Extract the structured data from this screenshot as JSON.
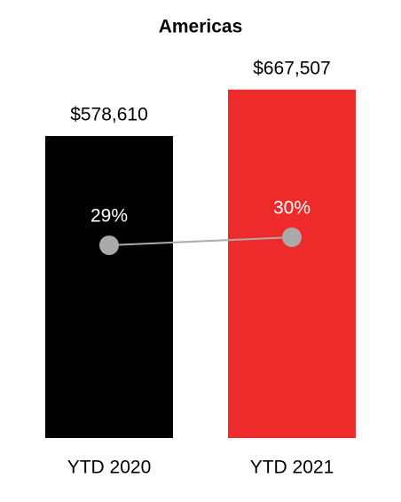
{
  "chart_data": {
    "type": "bar",
    "title": "Americas",
    "categories": [
      "YTD 2020",
      "YTD 2021"
    ],
    "series": [
      {
        "type": "bar",
        "colors": [
          "#000000",
          "#ee2a2a"
        ],
        "values": [
          578610,
          667507
        ],
        "value_labels": [
          "$578,610",
          "$667,507"
        ]
      },
      {
        "type": "line",
        "axis": "y2",
        "color": "#aaaaaa",
        "values": [
          29,
          30
        ],
        "value_labels": [
          "29%",
          "30%"
        ]
      }
    ],
    "ylim": [
      0,
      800000
    ],
    "y2lim": [
      5,
      57
    ]
  }
}
